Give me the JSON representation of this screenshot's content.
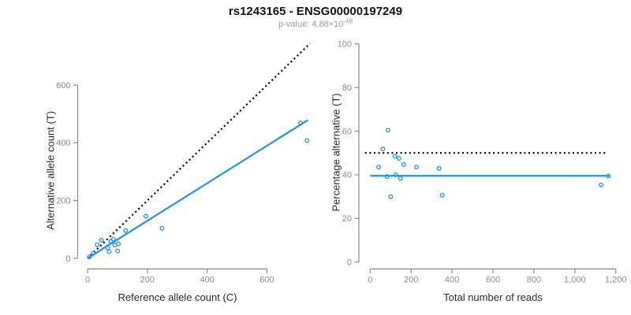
{
  "header": {
    "title": "rs1243165 - ENSG00000197249",
    "p_label": "p-value: 4.88×10",
    "p_exponent": "-48"
  },
  "colors": {
    "accent_blue": "#1e90ff",
    "line_black": "#000000",
    "axis_gray": "#8a8a8a",
    "tick_label_gray": "#8c8c8c",
    "axis_title_color": "#2b2b2b",
    "title_color": "#141414",
    "subtitle_gray": "#9a9a9a"
  },
  "chart_data": [
    {
      "id": "allele-count-scatter",
      "type": "scatter",
      "xlabel": "Reference allele count (C)",
      "ylabel": "Alternative allele count (T)",
      "xlim": [
        0,
        600
      ],
      "ylim": [
        0,
        600
      ],
      "grid": false,
      "xticks": {
        "values": [
          0,
          200,
          400,
          600
        ],
        "labels": [
          "0",
          "200",
          "400",
          "600"
        ]
      },
      "yticks": {
        "values": [
          0,
          200,
          400,
          600
        ],
        "labels": [
          "0",
          "200",
          "400",
          "600"
        ]
      },
      "points": [
        [
          6,
          5
        ],
        [
          19,
          18
        ],
        [
          32,
          47
        ],
        [
          46,
          63
        ],
        [
          68,
          36
        ],
        [
          72,
          23
        ],
        [
          78,
          59
        ],
        [
          86,
          66
        ],
        [
          91,
          46
        ],
        [
          101,
          25
        ],
        [
          103,
          50
        ],
        [
          127,
          96
        ],
        [
          195,
          146
        ],
        [
          249,
          104
        ],
        [
          712,
          469
        ],
        [
          734,
          408
        ]
      ],
      "lines": [
        {
          "name": "identity-line",
          "style": "dotted",
          "color": "black",
          "from": [
            0,
            0
          ],
          "to": [
            744,
            744
          ]
        },
        {
          "name": "fit-line",
          "style": "solid",
          "color": "blue",
          "from": [
            0,
            0
          ],
          "to": [
            737,
            479
          ]
        }
      ]
    },
    {
      "id": "percentage-alternative-scatter",
      "type": "scatter",
      "xlabel": "Total number of reads",
      "ylabel": "Percentage alternative (T)",
      "xlim": [
        0,
        1200
      ],
      "ylim": [
        0,
        100
      ],
      "grid": false,
      "xticks": {
        "values": [
          0,
          200,
          400,
          600,
          800,
          1000,
          1200
        ],
        "labels": [
          "0",
          "200",
          "400",
          "600",
          "800",
          "1,000",
          "1,200"
        ]
      },
      "yticks": {
        "values": [
          0,
          20,
          40,
          60,
          80,
          100
        ],
        "labels": [
          "0",
          "20",
          "40",
          "60",
          "80",
          "100"
        ]
      },
      "points": [
        [
          41,
          43.5
        ],
        [
          62,
          51.8
        ],
        [
          82,
          39.2
        ],
        [
          87,
          60.4
        ],
        [
          100,
          29.9
        ],
        [
          121,
          48.5
        ],
        [
          125,
          40.0
        ],
        [
          141,
          47.5
        ],
        [
          148,
          38.3
        ],
        [
          164,
          44.7
        ],
        [
          226,
          43.5
        ],
        [
          336,
          42.9
        ],
        [
          352,
          30.6
        ],
        [
          1128,
          35.4
        ],
        [
          1164,
          39.5
        ]
      ],
      "lines": [
        {
          "name": "fifty-percent-line",
          "style": "dotted",
          "color": "black",
          "from": [
            -25,
            50
          ],
          "to": [
            1158,
            50
          ]
        },
        {
          "name": "fit-line",
          "style": "solid",
          "color": "blue",
          "from": [
            0,
            39.5
          ],
          "to": [
            1168,
            39.5
          ]
        }
      ]
    }
  ]
}
